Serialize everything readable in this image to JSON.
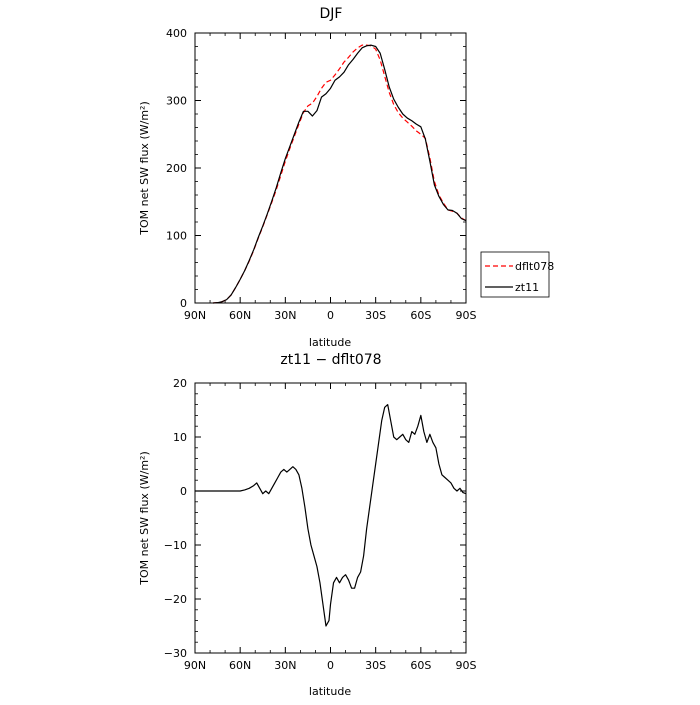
{
  "chart_data": [
    {
      "type": "line",
      "title": "DJF",
      "xlabel": "latitude",
      "ylabel": "TOM net SW flux (W/m²)",
      "xlim": [
        90,
        -90
      ],
      "ylim": [
        0,
        400
      ],
      "x_ticks": [
        90,
        60,
        30,
        0,
        -30,
        -60,
        -90
      ],
      "x_tick_labels": [
        "90N",
        "60N",
        "30N",
        "0",
        "30S",
        "60S",
        "90S"
      ],
      "y_ticks": [
        0,
        100,
        200,
        300,
        400
      ],
      "y_tick_labels": [
        "0",
        "100",
        "200",
        "300",
        "400"
      ],
      "legend_position": "right",
      "series": [
        {
          "name": "dflt078",
          "color": "#ff0000",
          "dash": "dashed",
          "x": [
            78,
            75,
            72,
            69,
            66,
            63,
            60,
            57,
            54,
            51,
            48,
            45,
            42,
            39,
            36,
            33,
            30,
            27,
            24,
            21,
            18,
            15,
            12,
            9,
            6,
            3,
            0,
            -3,
            -6,
            -9,
            -12,
            -15,
            -18,
            -21,
            -24,
            -27,
            -30,
            -33,
            -36,
            -39,
            -42,
            -45,
            -48,
            -51,
            -54,
            -57,
            -60,
            -63,
            -66,
            -69,
            -72,
            -75,
            -78,
            -81,
            -84,
            -87,
            -90
          ],
          "y": [
            0,
            0.5,
            2,
            5,
            12,
            23,
            35,
            48,
            62,
            78,
            96,
            113,
            131,
            149,
            168,
            189,
            210,
            229,
            247,
            265,
            282,
            292,
            296,
            306,
            318,
            327,
            330,
            338,
            347,
            357,
            364,
            372,
            378,
            382,
            382,
            381,
            376,
            360,
            336,
            312,
            294,
            282,
            274,
            268,
            262,
            255,
            250,
            244,
            215,
            180,
            160,
            148,
            138,
            136,
            133,
            126,
            122
          ]
        },
        {
          "name": "zt11",
          "color": "#000000",
          "dash": "solid",
          "x": [
            78,
            75,
            72,
            69,
            66,
            63,
            60,
            57,
            54,
            51,
            48,
            45,
            42,
            39,
            36,
            33,
            30,
            27,
            24,
            21,
            18,
            15,
            12,
            9,
            6,
            3,
            0,
            -3,
            -6,
            -9,
            -12,
            -15,
            -18,
            -21,
            -24,
            -27,
            -30,
            -33,
            -36,
            -39,
            -42,
            -45,
            -48,
            -51,
            -54,
            -57,
            -60,
            -63,
            -66,
            -69,
            -72,
            -75,
            -78,
            -81,
            -84,
            -87,
            -90
          ],
          "y": [
            0,
            0.5,
            2,
            5,
            12,
            23,
            35,
            48,
            63,
            79,
            97,
            114,
            132,
            151,
            171,
            193,
            214,
            232,
            250,
            268,
            284,
            284,
            277,
            285,
            305,
            310,
            318,
            330,
            335,
            342,
            353,
            361,
            370,
            378,
            381,
            382,
            380,
            370,
            346,
            320,
            302,
            290,
            280,
            274,
            270,
            265,
            261,
            243,
            210,
            175,
            158,
            146,
            138,
            137,
            133,
            125,
            122
          ]
        }
      ]
    },
    {
      "type": "line",
      "title": "zt11 − dflt078",
      "xlabel": "latitude",
      "ylabel": "TOM net SW flux (W/m²)",
      "xlim": [
        90,
        -90
      ],
      "ylim": [
        -30,
        20
      ],
      "x_ticks": [
        90,
        60,
        30,
        0,
        -30,
        -60,
        -90
      ],
      "x_tick_labels": [
        "90N",
        "60N",
        "30N",
        "0",
        "30S",
        "60S",
        "90S"
      ],
      "y_ticks": [
        -30,
        -20,
        -10,
        0,
        10,
        20
      ],
      "y_tick_labels": [
        "−30",
        "−20",
        "−10",
        "0",
        "10",
        "20"
      ],
      "series": [
        {
          "name": "",
          "color": "#000000",
          "dash": "solid",
          "x": [
            90,
            80,
            70,
            65,
            60,
            57,
            54,
            51,
            49,
            47,
            45,
            43,
            41,
            39,
            37,
            35,
            33,
            31,
            29,
            27,
            25,
            23,
            21,
            19,
            17,
            15,
            13,
            11,
            9,
            7,
            5,
            3,
            1,
            0,
            -1,
            -2,
            -4,
            -6,
            -8,
            -10,
            -12,
            -14,
            -16,
            -18,
            -20,
            -22,
            -24,
            -26,
            -28,
            -30,
            -32,
            -34,
            -36,
            -38,
            -40,
            -42,
            -44,
            -46,
            -48,
            -50,
            -52,
            -54,
            -56,
            -58,
            -60,
            -62,
            -63,
            -64,
            -66,
            -68,
            -70,
            -72,
            -74,
            -76,
            -78,
            -80,
            -82,
            -84,
            -86,
            -88,
            -90
          ],
          "y": [
            0,
            0,
            0,
            0,
            0,
            0.2,
            0.5,
            1.0,
            1.5,
            0.5,
            -0.5,
            0.0,
            -0.5,
            0.5,
            1.5,
            2.5,
            3.5,
            4.0,
            3.5,
            4.0,
            4.5,
            4.0,
            3.0,
            0.5,
            -3,
            -7,
            -10,
            -12,
            -14,
            -17,
            -21,
            -25,
            -24,
            -21,
            -19,
            -17,
            -16,
            -17,
            -16,
            -15.5,
            -16.5,
            -18,
            -18,
            -16,
            -15,
            -12,
            -7,
            -3,
            1,
            5,
            9,
            13,
            15.5,
            16,
            13,
            10,
            9.5,
            10,
            10.5,
            9.5,
            9,
            11,
            10.5,
            12,
            14,
            11,
            10,
            9,
            10.5,
            9,
            8,
            5,
            3,
            2.5,
            2,
            1.5,
            0.5,
            0,
            0.5,
            -0.3,
            -0.5
          ]
        }
      ]
    }
  ]
}
